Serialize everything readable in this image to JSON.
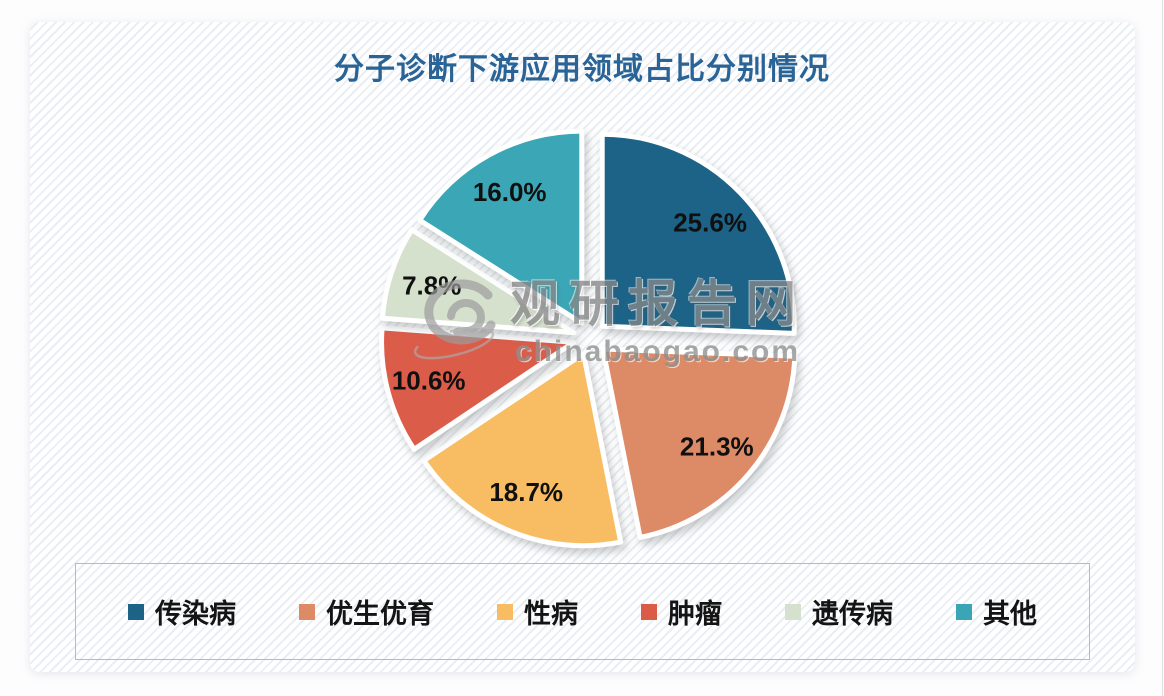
{
  "page": {
    "title": "分子诊断下游应用领域占比分别情况"
  },
  "watermark": {
    "logo_icon": "swirl-logo",
    "brand": "观研报告网",
    "domain": "chinabaogao.com"
  },
  "chart_data": {
    "type": "pie",
    "title": "分子诊断下游应用领域占比分别情况",
    "unit": "%",
    "direction": "clockwise",
    "start_angle_deg": 0,
    "exploded": true,
    "legend_position": "bottom",
    "series": [
      {
        "label": "传染病",
        "value": 25.6,
        "display": "25.6%",
        "color": "#1d6387"
      },
      {
        "label": "优生优育",
        "value": 21.3,
        "display": "21.3%",
        "color": "#dd8a66"
      },
      {
        "label": "性病",
        "value": 18.7,
        "display": "18.7%",
        "color": "#f8bc63"
      },
      {
        "label": "肿瘤",
        "value": 10.6,
        "display": "10.6%",
        "color": "#db5b49"
      },
      {
        "label": "遗传病",
        "value": 7.8,
        "display": "7.8%",
        "color": "#d5e0cd"
      },
      {
        "label": "其他",
        "value": 16.0,
        "display": "16.0%",
        "color": "#3aa6b5"
      }
    ],
    "title_color": "#2a6496",
    "label_text_color": "#101010"
  }
}
